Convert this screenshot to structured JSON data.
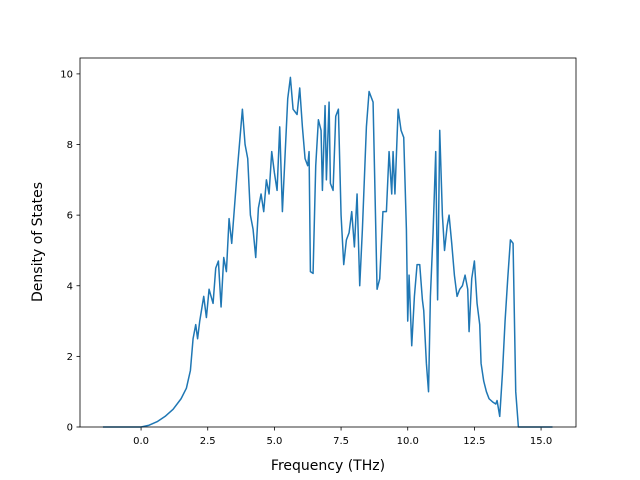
{
  "chart_data": {
    "type": "line",
    "xlabel": "Frequency (THz)",
    "ylabel": "Density of States",
    "xlim": [
      -2.29,
      16.31
    ],
    "ylim": [
      0,
      10.45
    ],
    "xticks": [
      {
        "value": 0,
        "label": "0.0"
      },
      2.5,
      {
        "value": 5,
        "label": "5.0"
      },
      7.5,
      {
        "value": 10,
        "label": "10.0"
      },
      12.5,
      {
        "value": 15,
        "label": "15.0"
      }
    ],
    "yticks": [
      0,
      2,
      4,
      6,
      8,
      10
    ],
    "grid": false,
    "series": [
      {
        "color": "#1f77b4",
        "x": [
          -1.43,
          0,
          0.3,
          0.6,
          0.9,
          1.2,
          1.5,
          1.7,
          1.85,
          1.95,
          2.05,
          2.12,
          2.2,
          2.35,
          2.45,
          2.55,
          2.7,
          2.8,
          2.9,
          3.0,
          3.1,
          3.2,
          3.3,
          3.4,
          3.6,
          3.8,
          3.9,
          4.0,
          4.1,
          4.2,
          4.3,
          4.4,
          4.5,
          4.6,
          4.7,
          4.8,
          4.9,
          5.0,
          5.1,
          5.2,
          5.3,
          5.4,
          5.5,
          5.6,
          5.7,
          5.85,
          5.95,
          6.05,
          6.15,
          6.25,
          6.3,
          6.35,
          6.45,
          6.55,
          6.65,
          6.75,
          6.8,
          6.9,
          6.95,
          7.05,
          7.1,
          7.2,
          7.3,
          7.4,
          7.5,
          7.6,
          7.7,
          7.8,
          7.9,
          8.0,
          8.1,
          8.2,
          8.3,
          8.45,
          8.55,
          8.7,
          8.85,
          8.95,
          9.07,
          9.2,
          9.3,
          9.4,
          9.45,
          9.52,
          9.64,
          9.75,
          9.85,
          9.95,
          10.0,
          10.05,
          10.15,
          10.25,
          10.35,
          10.45,
          10.55,
          10.6,
          10.7,
          10.78,
          10.85,
          10.95,
          11.05,
          11.12,
          11.2,
          11.3,
          11.38,
          11.48,
          11.55,
          11.65,
          11.75,
          11.85,
          11.95,
          12.05,
          12.15,
          12.25,
          12.3,
          12.4,
          12.5,
          12.6,
          12.7,
          12.75,
          12.85,
          12.95,
          13.05,
          13.2,
          13.3,
          13.35,
          13.45,
          13.55,
          13.65,
          13.75,
          13.85,
          13.95,
          14.05,
          14.15,
          15.43
        ],
        "values": [
          0,
          0,
          0.05,
          0.15,
          0.3,
          0.5,
          0.8,
          1.1,
          1.6,
          2.5,
          2.9,
          2.5,
          3.0,
          3.7,
          3.1,
          3.9,
          3.5,
          4.5,
          4.7,
          3.4,
          4.8,
          4.4,
          5.9,
          5.2,
          7.2,
          9.0,
          8.0,
          7.6,
          6.0,
          5.6,
          4.8,
          6.2,
          6.6,
          6.1,
          7.0,
          6.6,
          7.8,
          7.2,
          6.7,
          8.5,
          6.1,
          7.7,
          9.3,
          9.9,
          9.0,
          8.85,
          9.6,
          8.5,
          7.6,
          7.4,
          7.8,
          4.4,
          4.35,
          7.4,
          8.7,
          8.4,
          6.7,
          9.1,
          7.0,
          9.2,
          6.9,
          6.7,
          8.8,
          9.0,
          6.0,
          4.6,
          5.3,
          5.5,
          6.1,
          5.1,
          6.6,
          4.0,
          5.6,
          8.5,
          9.5,
          9.2,
          3.9,
          4.2,
          6.1,
          6.1,
          7.8,
          6.6,
          7.8,
          6.6,
          9.0,
          8.4,
          8.2,
          5.6,
          3.0,
          4.3,
          2.3,
          3.7,
          4.6,
          4.6,
          3.6,
          3.3,
          1.8,
          1.0,
          3.7,
          5.5,
          7.8,
          3.6,
          8.4,
          6.0,
          5.0,
          5.7,
          6.0,
          5.2,
          4.3,
          3.7,
          3.9,
          4.0,
          4.3,
          3.9,
          2.7,
          4.2,
          4.7,
          3.5,
          2.9,
          1.8,
          1.3,
          1.0,
          0.8,
          0.7,
          0.65,
          0.75,
          0.3,
          1.5,
          3.0,
          4.2,
          5.3,
          5.2,
          1.0,
          0,
          0
        ]
      }
    ]
  }
}
